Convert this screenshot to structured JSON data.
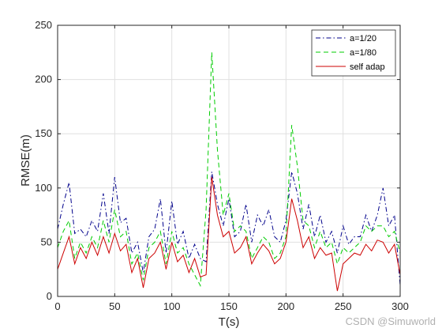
{
  "chart_data": {
    "type": "line",
    "xlabel": "T(s)",
    "ylabel": "RMSE(m)",
    "xlim": [
      0,
      300
    ],
    "ylim": [
      0,
      250
    ],
    "xticks": [
      "0",
      "50",
      "100",
      "150",
      "200",
      "250",
      "300"
    ],
    "yticks": [
      "0",
      "50",
      "100",
      "150",
      "200",
      "250"
    ],
    "grid": true,
    "legend_position": "top-right",
    "x": [
      0,
      5,
      10,
      15,
      20,
      25,
      30,
      35,
      40,
      45,
      50,
      55,
      60,
      65,
      70,
      75,
      80,
      85,
      90,
      95,
      100,
      105,
      110,
      115,
      120,
      125,
      130,
      135,
      140,
      145,
      150,
      155,
      160,
      165,
      170,
      175,
      180,
      185,
      190,
      195,
      200,
      205,
      210,
      215,
      220,
      225,
      230,
      235,
      240,
      245,
      250,
      255,
      260,
      265,
      270,
      275,
      280,
      285,
      290,
      295,
      300
    ],
    "series": [
      {
        "name": "a=1/20",
        "color": "#00008b",
        "dash": "dashdot",
        "values": [
          62,
          85,
          105,
          58,
          62,
          55,
          70,
          60,
          95,
          58,
          110,
          68,
          72,
          40,
          50,
          22,
          55,
          62,
          90,
          40,
          88,
          48,
          60,
          35,
          48,
          35,
          32,
          115,
          85,
          65,
          90,
          55,
          60,
          85,
          50,
          75,
          65,
          80,
          55,
          50,
          70,
          115,
          95,
          62,
          85,
          55,
          75,
          50,
          60,
          40,
          65,
          48,
          55,
          55,
          75,
          60,
          75,
          100,
          65,
          75,
          10
        ]
      },
      {
        "name": "a=1/80",
        "color": "#00cc00",
        "dash": "dash",
        "values": [
          45,
          60,
          70,
          35,
          50,
          40,
          55,
          45,
          70,
          50,
          80,
          55,
          60,
          30,
          40,
          15,
          45,
          50,
          60,
          30,
          60,
          40,
          45,
          30,
          20,
          10,
          80,
          225,
          135,
          75,
          95,
          60,
          65,
          60,
          35,
          45,
          55,
          50,
          35,
          40,
          55,
          158,
          120,
          70,
          65,
          45,
          60,
          45,
          50,
          30,
          45,
          40,
          45,
          50,
          65,
          60,
          65,
          65,
          55,
          60,
          40
        ]
      },
      {
        "name": "self adap",
        "color": "#cc0000",
        "dash": "solid",
        "values": [
          25,
          40,
          55,
          30,
          45,
          35,
          50,
          38,
          55,
          40,
          58,
          42,
          48,
          22,
          35,
          8,
          35,
          40,
          50,
          25,
          50,
          32,
          38,
          22,
          35,
          18,
          20,
          110,
          75,
          55,
          60,
          40,
          45,
          55,
          30,
          40,
          48,
          42,
          30,
          35,
          50,
          90,
          70,
          45,
          55,
          35,
          45,
          38,
          40,
          5,
          30,
          35,
          40,
          38,
          48,
          42,
          52,
          50,
          40,
          48,
          20
        ]
      }
    ]
  },
  "watermark": "CSDN @Simuworld"
}
